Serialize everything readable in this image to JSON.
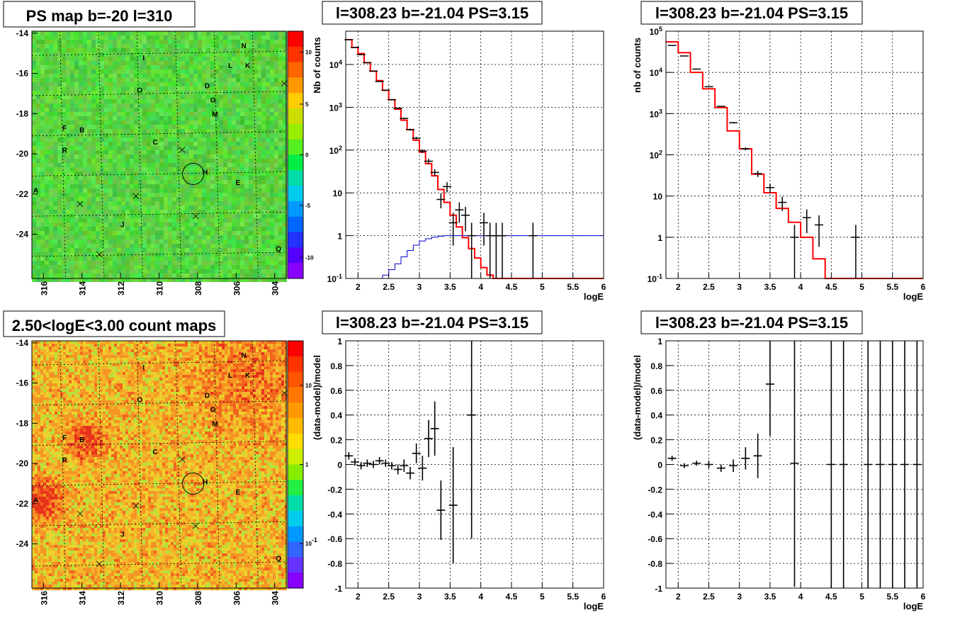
{
  "colors": {
    "model_line": "#ff0000",
    "efficiency_line": "#0000cc",
    "data_points": "#000000"
  },
  "chart_data": [
    {
      "panel": "top-left",
      "type": "heatmap",
      "title": "PS map b=-20 l=310",
      "x_ticks": [
        "316",
        "314",
        "312",
        "310",
        "308",
        "306",
        "304"
      ],
      "y_ticks": [
        "-14",
        "-16",
        "-18",
        "-20",
        "-22",
        "-24"
      ],
      "palette_ticks": [
        "10",
        "5",
        "0",
        "-5",
        "-10"
      ],
      "sources": [
        {
          "name": "N",
          "l": 305.6,
          "b": -14.6
        },
        {
          "name": "I",
          "l": 310.8,
          "b": -15.2
        },
        {
          "name": "L",
          "l": 306.3,
          "b": -15.6
        },
        {
          "name": "K",
          "l": 305.4,
          "b": -15.6
        },
        {
          "name": "D",
          "l": 307.5,
          "b": -16.6
        },
        {
          "name": "O",
          "l": 311.0,
          "b": -16.8
        },
        {
          "name": "G",
          "l": 307.2,
          "b": -17.3
        },
        {
          "name": "M",
          "l": 307.1,
          "b": -18.0
        },
        {
          "name": "F",
          "l": 314.9,
          "b": -18.7
        },
        {
          "name": "B",
          "l": 314.0,
          "b": -18.8
        },
        {
          "name": "C",
          "l": 310.2,
          "b": -19.4
        },
        {
          "name": "R",
          "l": 314.9,
          "b": -19.8
        },
        {
          "name": "H",
          "l": 307.6,
          "b": -20.9
        },
        {
          "name": "E",
          "l": 305.9,
          "b": -21.4
        },
        {
          "name": "A",
          "l": 316.4,
          "b": -21.8
        },
        {
          "name": "J",
          "l": 311.9,
          "b": -23.5
        },
        {
          "name": "Q",
          "l": 303.8,
          "b": -24.7
        }
      ]
    },
    {
      "panel": "top-middle",
      "type": "line",
      "title": "l=308.23 b=-21.04 PS=3.15",
      "xlabel": "logE",
      "ylabel": "Nb of counts",
      "xlim": [
        1.8,
        6
      ],
      "ylim": [
        0.1,
        60000
      ],
      "yscale": "log",
      "x_ticks": [
        "2",
        "2.5",
        "3",
        "3.5",
        "4",
        "4.5",
        "5",
        "5.5",
        "6"
      ],
      "y_ticks": [
        "10^{-1}",
        "1",
        "10",
        "10^{2}",
        "10^{3}",
        "10^{4}"
      ],
      "series": [
        {
          "x": [
            1.8,
            1.9,
            2.0,
            2.1,
            2.2,
            2.3,
            2.4,
            2.5,
            2.6,
            2.7,
            2.8,
            2.9,
            3.0,
            3.1,
            3.2,
            3.3,
            3.4,
            3.5,
            3.6,
            3.7,
            3.8,
            3.9,
            4.0,
            4.1,
            4.2,
            4.3,
            6.0
          ],
          "y": [
            38000,
            25000,
            18000,
            11000,
            7000,
            4200,
            2500,
            1500,
            900,
            500,
            300,
            170,
            90,
            48,
            25,
            12,
            6,
            3,
            1.6,
            0.9,
            0.5,
            0.3,
            0.18,
            0.12,
            0.1,
            0.1,
            0.1
          ]
        },
        {
          "x": [
            1.8,
            2.3,
            2.4,
            2.5,
            2.6,
            2.7,
            2.8,
            2.9,
            3.0,
            3.1,
            3.2,
            3.3,
            3.4,
            3.5,
            6.0
          ],
          "y": [
            0.1,
            0.1,
            0.12,
            0.16,
            0.22,
            0.32,
            0.45,
            0.6,
            0.75,
            0.85,
            0.92,
            0.97,
            1.0,
            1.0,
            1.0
          ]
        }
      ],
      "points": [
        {
          "x": 1.85,
          "y": 38000
        },
        {
          "x": 1.95,
          "y": 25000
        },
        {
          "x": 2.05,
          "y": 17000
        },
        {
          "x": 2.15,
          "y": 11000
        },
        {
          "x": 2.25,
          "y": 7000
        },
        {
          "x": 2.35,
          "y": 4000
        },
        {
          "x": 2.45,
          "y": 2500
        },
        {
          "x": 2.55,
          "y": 1500
        },
        {
          "x": 2.65,
          "y": 950
        },
        {
          "x": 2.75,
          "y": 550
        },
        {
          "x": 2.85,
          "y": 300
        },
        {
          "x": 2.95,
          "y": 190
        },
        {
          "x": 3.05,
          "y": 95
        },
        {
          "x": 3.15,
          "y": 55
        },
        {
          "x": 3.25,
          "y": 30
        },
        {
          "x": 3.35,
          "y": 7
        },
        {
          "x": 3.45,
          "y": 14
        },
        {
          "x": 3.55,
          "y": 2
        },
        {
          "x": 3.65,
          "y": 4
        },
        {
          "x": 3.75,
          "y": 3
        },
        {
          "x": 3.85,
          "y": 1
        },
        {
          "x": 4.05,
          "y": 2
        },
        {
          "x": 4.15,
          "y": 1
        },
        {
          "x": 4.25,
          "y": 1
        },
        {
          "x": 4.35,
          "y": 1
        },
        {
          "x": 4.85,
          "y": 1
        }
      ]
    },
    {
      "panel": "top-right",
      "type": "line",
      "title": "l=308.23 b=-21.04 PS=3.15",
      "xlabel": "logE",
      "ylabel": "nb of counts",
      "xlim": [
        1.8,
        6
      ],
      "ylim": [
        0.1,
        100000
      ],
      "yscale": "log",
      "x_ticks": [
        "2",
        "2.5",
        "3",
        "3.5",
        "4",
        "4.5",
        "5",
        "5.5",
        "6"
      ],
      "y_ticks": [
        "10^{-1}",
        "1",
        "10",
        "10^{2}",
        "10^{3}",
        "10^{4}",
        "10^{5}"
      ],
      "series": [
        {
          "x": [
            1.8,
            2.0,
            2.2,
            2.4,
            2.6,
            2.8,
            3.0,
            3.2,
            3.4,
            3.6,
            3.8,
            4.0,
            4.2,
            4.4,
            6.0
          ],
          "y": [
            55000,
            30000,
            10000,
            4000,
            1400,
            380,
            140,
            34,
            12,
            5,
            2.3,
            1,
            0.3,
            0.1,
            0.1
          ]
        }
      ],
      "points": [
        {
          "x": 1.9,
          "y": 45000
        },
        {
          "x": 2.1,
          "y": 25000
        },
        {
          "x": 2.3,
          "y": 12000
        },
        {
          "x": 2.5,
          "y": 4500
        },
        {
          "x": 2.7,
          "y": 1500
        },
        {
          "x": 2.9,
          "y": 600
        },
        {
          "x": 3.1,
          "y": 140
        },
        {
          "x": 3.3,
          "y": 35
        },
        {
          "x": 3.5,
          "y": 16
        },
        {
          "x": 3.7,
          "y": 7
        },
        {
          "x": 3.9,
          "y": 1
        },
        {
          "x": 4.1,
          "y": 3
        },
        {
          "x": 4.3,
          "y": 2
        },
        {
          "x": 4.9,
          "y": 1
        }
      ]
    },
    {
      "panel": "bottom-left",
      "type": "heatmap",
      "title": "2.50<logE<3.00 count maps",
      "x_ticks": [
        "316",
        "314",
        "312",
        "310",
        "308",
        "306",
        "304"
      ],
      "y_ticks": [
        "-14",
        "-16",
        "-18",
        "-20",
        "-22",
        "-24"
      ],
      "palette_ticks": [
        "10",
        "1",
        "10^{-1}"
      ],
      "palette_scale": "log"
    },
    {
      "panel": "bottom-middle",
      "type": "scatter",
      "title": "l=308.23 b=-21.04 PS=3.15",
      "xlabel": "logE",
      "ylabel": "(data-model)/model",
      "xlim": [
        1.8,
        6
      ],
      "ylim": [
        -1,
        1
      ],
      "x_ticks": [
        "2",
        "2.5",
        "3",
        "3.5",
        "4",
        "4.5",
        "5",
        "5.5",
        "6"
      ],
      "y_ticks": [
        "-1",
        "-0.8",
        "-0.6",
        "-0.4",
        "-0.2",
        "0",
        "0.2",
        "0.4",
        "0.6",
        "0.8",
        "1"
      ],
      "points": [
        {
          "x": 1.85,
          "y": 0.07,
          "err": 0.03
        },
        {
          "x": 1.95,
          "y": 0.02,
          "err": 0.03
        },
        {
          "x": 2.05,
          "y": -0.01,
          "err": 0.03
        },
        {
          "x": 2.15,
          "y": 0.01,
          "err": 0.03
        },
        {
          "x": 2.25,
          "y": 0.0,
          "err": 0.03
        },
        {
          "x": 2.35,
          "y": 0.03,
          "err": 0.03
        },
        {
          "x": 2.45,
          "y": 0.01,
          "err": 0.03
        },
        {
          "x": 2.55,
          "y": -0.01,
          "err": 0.03
        },
        {
          "x": 2.65,
          "y": -0.04,
          "err": 0.04
        },
        {
          "x": 2.75,
          "y": -0.01,
          "err": 0.05
        },
        {
          "x": 2.85,
          "y": -0.07,
          "err": 0.05
        },
        {
          "x": 2.95,
          "y": 0.09,
          "err": 0.08
        },
        {
          "x": 3.05,
          "y": -0.03,
          "err": 0.1
        },
        {
          "x": 3.15,
          "y": 0.21,
          "err": 0.15
        },
        {
          "x": 3.25,
          "y": 0.29,
          "err": 0.22
        },
        {
          "x": 3.35,
          "y": -0.37,
          "err": 0.24
        },
        {
          "x": 3.55,
          "y": -0.33,
          "err": 0.47
        },
        {
          "x": 3.85,
          "y": 0.4,
          "err": 1.0
        }
      ]
    },
    {
      "panel": "bottom-right",
      "type": "scatter",
      "title": "l=308.23 b=-21.04 PS=3.15",
      "xlabel": "logE",
      "ylabel": "(data-model)/model",
      "xlim": [
        1.8,
        6
      ],
      "ylim": [
        -1,
        1
      ],
      "x_ticks": [
        "2",
        "2.5",
        "3",
        "3.5",
        "4",
        "4.5",
        "5",
        "5.5",
        "6"
      ],
      "y_ticks": [
        "-1",
        "-0.8",
        "-0.6",
        "-0.4",
        "-0.2",
        "0",
        "0.2",
        "0.4",
        "0.6",
        "0.8",
        "1"
      ],
      "points": [
        {
          "x": 1.9,
          "y": 0.05,
          "err": 0.02
        },
        {
          "x": 2.1,
          "y": -0.01,
          "err": 0.02
        },
        {
          "x": 2.3,
          "y": 0.01,
          "err": 0.02
        },
        {
          "x": 2.5,
          "y": 0.0,
          "err": 0.03
        },
        {
          "x": 2.7,
          "y": -0.03,
          "err": 0.03
        },
        {
          "x": 2.9,
          "y": -0.01,
          "err": 0.05
        },
        {
          "x": 3.1,
          "y": 0.05,
          "err": 0.09
        },
        {
          "x": 3.3,
          "y": 0.07,
          "err": 0.18
        },
        {
          "x": 3.5,
          "y": 0.65,
          "err": 0.42
        },
        {
          "x": 3.9,
          "y": 0.01,
          "err": 1.0
        },
        {
          "x": 4.5,
          "y": 0.0,
          "err": 1.5
        },
        {
          "x": 4.7,
          "y": 0.0,
          "err": 1.5
        },
        {
          "x": 5.1,
          "y": 0.0,
          "err": 1.5
        },
        {
          "x": 5.3,
          "y": 0.0,
          "err": 1.5
        },
        {
          "x": 5.5,
          "y": 0.0,
          "err": 1.5
        },
        {
          "x": 5.7,
          "y": 0.0,
          "err": 1.5
        },
        {
          "x": 5.9,
          "y": 0.0,
          "err": 1.5
        }
      ]
    }
  ]
}
